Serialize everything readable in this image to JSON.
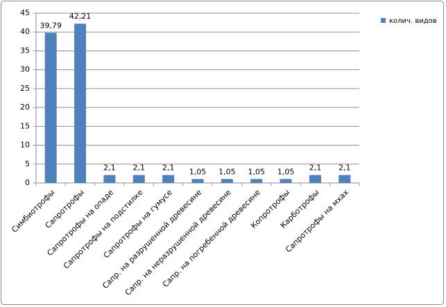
{
  "chart_data": {
    "type": "bar",
    "categories": [
      "Симбиотрофы",
      "Сапротрофы",
      "Сапротрофы на опаде",
      "Сапротрофы на подстилке",
      "Сапротрофы на гумусе",
      "Сапр. на разрушенной древесине",
      "Сапр. на неразрушенной древесине",
      "Сапр. на погребенной древесине",
      "Копротрофы",
      "Карботрофы",
      "Сапротрофы на мхах"
    ],
    "series": [
      {
        "name": "колич. видов",
        "color": "#4f81bd",
        "values": [
          39.79,
          42.21,
          2.1,
          2.1,
          2.1,
          1.05,
          1.05,
          1.05,
          1.05,
          2.1,
          2.1
        ],
        "value_labels": [
          "39,79",
          "42,21",
          "2,1",
          "2,1",
          "2,1",
          "1,05",
          "1,05",
          "1,05",
          "1,05",
          "2,1",
          "2,1"
        ]
      }
    ],
    "ylim": [
      0,
      45
    ],
    "yticks": [
      0,
      5,
      10,
      15,
      20,
      25,
      30,
      35,
      40,
      45
    ],
    "grid": true,
    "legend": "right"
  }
}
